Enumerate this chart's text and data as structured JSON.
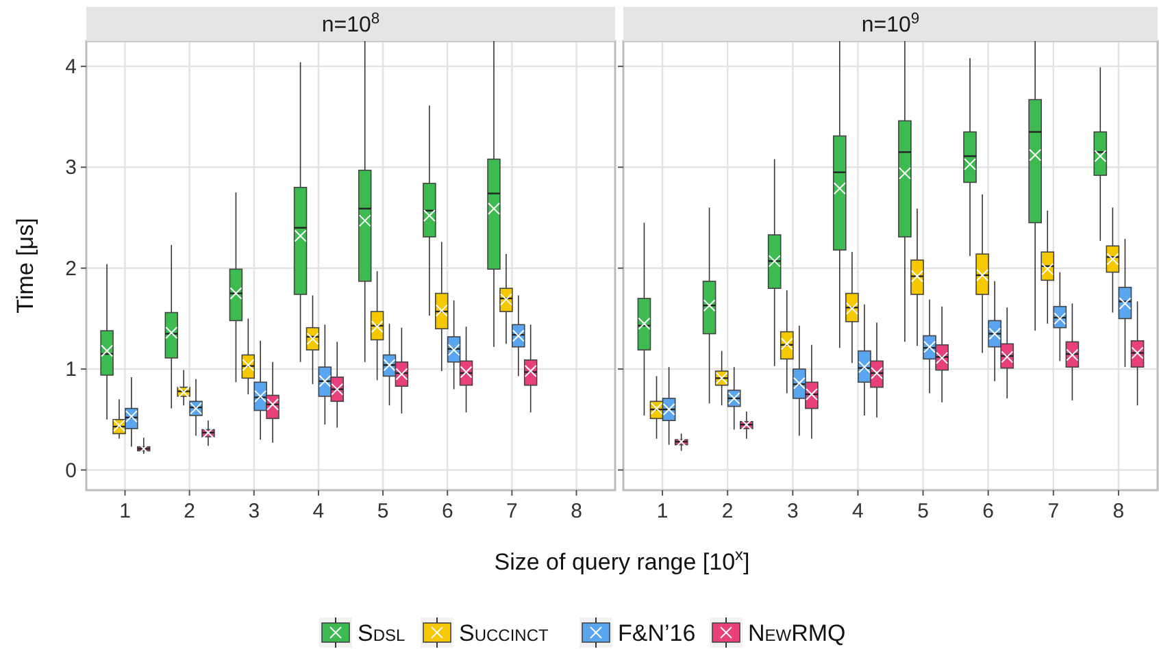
{
  "chart_data": [
    {
      "type": "box",
      "title": "n=10$^{8}$",
      "xlabel": "Size of query range [10$^{x}$]",
      "ylabel": "Time [μs]",
      "categories": [
        "1",
        "2",
        "3",
        "4",
        "5",
        "6",
        "7",
        "8"
      ],
      "ylim": [
        -0.2,
        4.25
      ],
      "yticks": [
        0,
        1,
        2,
        3,
        4
      ],
      "grid": true,
      "legend": "bottom",
      "series": [
        {
          "name": "Sdsl",
          "color": "#3dbb50",
          "boxes": [
            {
              "low": 0.5,
              "q1": 0.94,
              "median": 1.15,
              "q3": 1.38,
              "high": 2.04,
              "mean": 1.18
            },
            {
              "low": 0.61,
              "q1": 1.11,
              "median": 1.35,
              "q3": 1.56,
              "high": 2.23,
              "mean": 1.36
            },
            {
              "low": 0.87,
              "q1": 1.48,
              "median": 1.75,
              "q3": 1.99,
              "high": 2.75,
              "mean": 1.75
            },
            {
              "low": 1.07,
              "q1": 1.74,
              "median": 2.4,
              "q3": 2.8,
              "high": 4.04,
              "mean": 2.32
            },
            {
              "low": 1.07,
              "q1": 1.87,
              "median": 2.59,
              "q3": 2.97,
              "high": 4.25,
              "mean": 2.47
            },
            {
              "low": 1.53,
              "q1": 2.31,
              "median": 2.57,
              "q3": 2.84,
              "high": 3.61,
              "mean": 2.52
            },
            {
              "low": 1.22,
              "q1": 1.99,
              "median": 2.74,
              "q3": 3.08,
              "high": 4.25,
              "mean": 2.59
            },
            null
          ]
        },
        {
          "name": "Succinct",
          "color": "#f5c800",
          "boxes": [
            {
              "low": 0.31,
              "q1": 0.36,
              "median": 0.43,
              "q3": 0.5,
              "high": 0.7,
              "mean": 0.44
            },
            {
              "low": 0.64,
              "q1": 0.73,
              "median": 0.78,
              "q3": 0.82,
              "high": 0.99,
              "mean": 0.77
            },
            {
              "low": 0.75,
              "q1": 0.91,
              "median": 1.03,
              "q3": 1.14,
              "high": 1.5,
              "mean": 1.04
            },
            {
              "low": 0.85,
              "q1": 1.19,
              "median": 1.32,
              "q3": 1.41,
              "high": 1.73,
              "mean": 1.3
            },
            {
              "low": 0.89,
              "q1": 1.29,
              "median": 1.43,
              "q3": 1.57,
              "high": 1.97,
              "mean": 1.42
            },
            {
              "low": 0.98,
              "q1": 1.4,
              "median": 1.57,
              "q3": 1.75,
              "high": 2.26,
              "mean": 1.58
            },
            {
              "low": 1.25,
              "q1": 1.57,
              "median": 1.7,
              "q3": 1.8,
              "high": 2.14,
              "mean": 1.69
            },
            null
          ]
        },
        {
          "name": "F&N’16",
          "color": "#5aa5f0",
          "boxes": [
            {
              "low": 0.23,
              "q1": 0.41,
              "median": 0.52,
              "q3": 0.61,
              "high": 0.92,
              "mean": 0.53
            },
            {
              "low": 0.34,
              "q1": 0.54,
              "median": 0.62,
              "q3": 0.68,
              "high": 0.9,
              "mean": 0.61
            },
            {
              "low": 0.3,
              "q1": 0.59,
              "median": 0.72,
              "q3": 0.87,
              "high": 1.28,
              "mean": 0.73
            },
            {
              "low": 0.45,
              "q1": 0.73,
              "median": 0.88,
              "q3": 1.02,
              "high": 1.44,
              "mean": 0.88
            },
            {
              "low": 0.64,
              "q1": 0.93,
              "median": 1.04,
              "q3": 1.14,
              "high": 1.45,
              "mean": 1.04
            },
            {
              "low": 0.8,
              "q1": 1.07,
              "median": 1.2,
              "q3": 1.32,
              "high": 1.68,
              "mean": 1.19
            },
            {
              "low": 0.93,
              "q1": 1.22,
              "median": 1.34,
              "q3": 1.44,
              "high": 1.73,
              "mean": 1.33
            },
            null
          ]
        },
        {
          "name": "NewRMQ",
          "color": "#e8407a",
          "boxes": [
            {
              "low": 0.16,
              "q1": 0.19,
              "median": 0.21,
              "q3": 0.23,
              "high": 0.32,
              "mean": 0.21
            },
            {
              "low": 0.24,
              "q1": 0.33,
              "median": 0.37,
              "q3": 0.4,
              "high": 0.49,
              "mean": 0.37
            },
            {
              "low": 0.27,
              "q1": 0.51,
              "median": 0.65,
              "q3": 0.74,
              "high": 1.07,
              "mean": 0.65
            },
            {
              "low": 0.42,
              "q1": 0.68,
              "median": 0.8,
              "q3": 0.92,
              "high": 1.27,
              "mean": 0.8
            },
            {
              "low": 0.56,
              "q1": 0.83,
              "median": 0.96,
              "q3": 1.07,
              "high": 1.41,
              "mean": 0.95
            },
            {
              "low": 0.57,
              "q1": 0.84,
              "median": 0.96,
              "q3": 1.08,
              "high": 1.42,
              "mean": 0.97
            },
            {
              "low": 0.57,
              "q1": 0.84,
              "median": 0.97,
              "q3": 1.09,
              "high": 1.44,
              "mean": 0.98
            },
            null
          ]
        }
      ]
    },
    {
      "type": "box",
      "title": "n=10$^{9}$",
      "categories": [
        "1",
        "2",
        "3",
        "4",
        "5",
        "6",
        "7",
        "8"
      ],
      "ylim": [
        -0.2,
        4.25
      ],
      "yticks": [
        0,
        1,
        2,
        3,
        4
      ],
      "grid": true,
      "tick_labels": "x",
      "series": [
        {
          "color": "#3dbb50",
          "boxes": [
            {
              "low": 0.54,
              "q1": 1.19,
              "median": 1.43,
              "q3": 1.7,
              "high": 2.45,
              "mean": 1.45
            },
            {
              "low": 0.66,
              "q1": 1.35,
              "median": 1.63,
              "q3": 1.87,
              "high": 2.6,
              "mean": 1.63
            },
            {
              "low": 1.03,
              "q1": 1.8,
              "median": 2.07,
              "q3": 2.33,
              "high": 3.08,
              "mean": 2.07
            },
            {
              "low": 1.21,
              "q1": 2.18,
              "median": 2.95,
              "q3": 3.31,
              "high": 4.25,
              "mean": 2.79
            },
            {
              "low": 1.27,
              "q1": 2.31,
              "median": 3.15,
              "q3": 3.46,
              "high": 4.25,
              "mean": 2.94
            },
            {
              "low": 2.12,
              "q1": 2.85,
              "median": 3.11,
              "q3": 3.35,
              "high": 4.08,
              "mean": 3.03
            },
            {
              "low": 1.38,
              "q1": 2.45,
              "median": 3.35,
              "q3": 3.67,
              "high": 4.25,
              "mean": 3.12
            },
            {
              "low": 2.27,
              "q1": 2.92,
              "median": 3.15,
              "q3": 3.35,
              "high": 3.99,
              "mean": 3.11
            }
          ]
        },
        {
          "color": "#f5c800",
          "boxes": [
            {
              "low": 0.31,
              "q1": 0.51,
              "median": 0.6,
              "q3": 0.68,
              "high": 0.93,
              "mean": 0.61
            },
            {
              "low": 0.64,
              "q1": 0.84,
              "median": 0.91,
              "q3": 0.98,
              "high": 1.18,
              "mean": 0.91
            },
            {
              "low": 0.76,
              "q1": 1.1,
              "median": 1.24,
              "q3": 1.37,
              "high": 1.78,
              "mean": 1.25
            },
            {
              "low": 1.06,
              "q1": 1.47,
              "median": 1.61,
              "q3": 1.75,
              "high": 2.16,
              "mean": 1.6
            },
            {
              "low": 1.23,
              "q1": 1.74,
              "median": 1.92,
              "q3": 2.08,
              "high": 2.59,
              "mean": 1.92
            },
            {
              "low": 1.16,
              "q1": 1.74,
              "median": 1.93,
              "q3": 2.14,
              "high": 2.73,
              "mean": 1.93
            },
            {
              "low": 1.45,
              "q1": 1.88,
              "median": 2.02,
              "q3": 2.16,
              "high": 2.57,
              "mean": 1.99
            },
            {
              "low": 1.56,
              "q1": 1.96,
              "median": 2.11,
              "q3": 2.22,
              "high": 2.6,
              "mean": 2.09
            }
          ]
        },
        {
          "color": "#5aa5f0",
          "boxes": [
            {
              "low": 0.25,
              "q1": 0.49,
              "median": 0.6,
              "q3": 0.71,
              "high": 1.02,
              "mean": 0.6
            },
            {
              "low": 0.4,
              "q1": 0.63,
              "median": 0.71,
              "q3": 0.79,
              "high": 1.02,
              "mean": 0.71
            },
            {
              "low": 0.34,
              "q1": 0.71,
              "median": 0.85,
              "q3": 1.0,
              "high": 1.43,
              "mean": 0.86
            },
            {
              "low": 0.54,
              "q1": 0.87,
              "median": 1.01,
              "q3": 1.18,
              "high": 1.64,
              "mean": 1.02
            },
            {
              "low": 0.76,
              "q1": 1.1,
              "median": 1.21,
              "q3": 1.33,
              "high": 1.69,
              "mean": 1.22
            },
            {
              "low": 0.88,
              "q1": 1.22,
              "median": 1.35,
              "q3": 1.48,
              "high": 1.87,
              "mean": 1.35
            },
            {
              "low": 1.08,
              "q1": 1.41,
              "median": 1.51,
              "q3": 1.62,
              "high": 1.96,
              "mean": 1.5
            },
            {
              "low": 1.02,
              "q1": 1.5,
              "median": 1.67,
              "q3": 1.81,
              "high": 2.29,
              "mean": 1.65
            }
          ]
        },
        {
          "color": "#e8407a",
          "boxes": [
            {
              "low": 0.19,
              "q1": 0.25,
              "median": 0.28,
              "q3": 0.3,
              "high": 0.36,
              "mean": 0.28
            },
            {
              "low": 0.31,
              "q1": 0.41,
              "median": 0.45,
              "q3": 0.48,
              "high": 0.58,
              "mean": 0.45
            },
            {
              "low": 0.31,
              "q1": 0.61,
              "median": 0.75,
              "q3": 0.87,
              "high": 1.24,
              "mean": 0.75
            },
            {
              "low": 0.52,
              "q1": 0.82,
              "median": 0.96,
              "q3": 1.08,
              "high": 1.46,
              "mean": 0.96
            },
            {
              "low": 0.67,
              "q1": 0.99,
              "median": 1.12,
              "q3": 1.24,
              "high": 1.62,
              "mean": 1.11
            },
            {
              "low": 0.71,
              "q1": 1.01,
              "median": 1.13,
              "q3": 1.25,
              "high": 1.61,
              "mean": 1.12
            },
            {
              "low": 0.69,
              "q1": 1.02,
              "median": 1.15,
              "q3": 1.27,
              "high": 1.65,
              "mean": 1.14
            },
            {
              "low": 0.64,
              "q1": 1.02,
              "median": 1.16,
              "q3": 1.28,
              "high": 1.67,
              "mean": 1.16
            }
          ]
        }
      ]
    }
  ]
}
